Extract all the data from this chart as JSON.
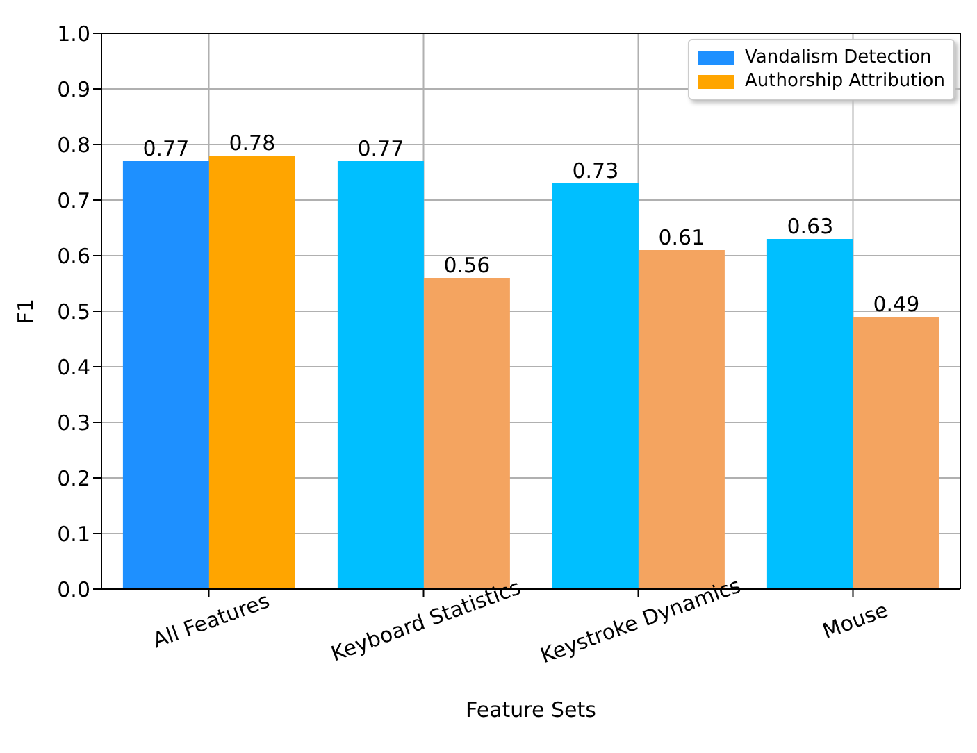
{
  "chart_data": {
    "type": "bar",
    "xlabel": "Feature Sets",
    "ylabel": "F1",
    "categories": [
      "All Features",
      "Keyboard Statistics",
      "Keystroke Dynamics",
      "Mouse"
    ],
    "series": [
      {
        "name": "Vandalism Detection",
        "color": "#1e90ff",
        "colors": [
          "#1e90ff",
          "#00bfff",
          "#00bfff",
          "#00bfff"
        ],
        "values": [
          0.77,
          0.77,
          0.73,
          0.63
        ]
      },
      {
        "name": "Authorship Attribution",
        "color": "#ffa500",
        "colors": [
          "#ffa500",
          "#f4a460",
          "#f4a460",
          "#f4a460"
        ],
        "values": [
          0.78,
          0.56,
          0.61,
          0.49
        ]
      }
    ],
    "ylim": [
      0,
      1
    ],
    "yticks": [
      {
        "value": 0,
        "label": "0.0"
      },
      0.1,
      0.2,
      0.3,
      0.4,
      0.5,
      0.6,
      0.7,
      0.8,
      0.9,
      {
        "value": 1,
        "label": "1.0"
      }
    ],
    "data_labels": true,
    "grid": true,
    "legend": "top right"
  }
}
